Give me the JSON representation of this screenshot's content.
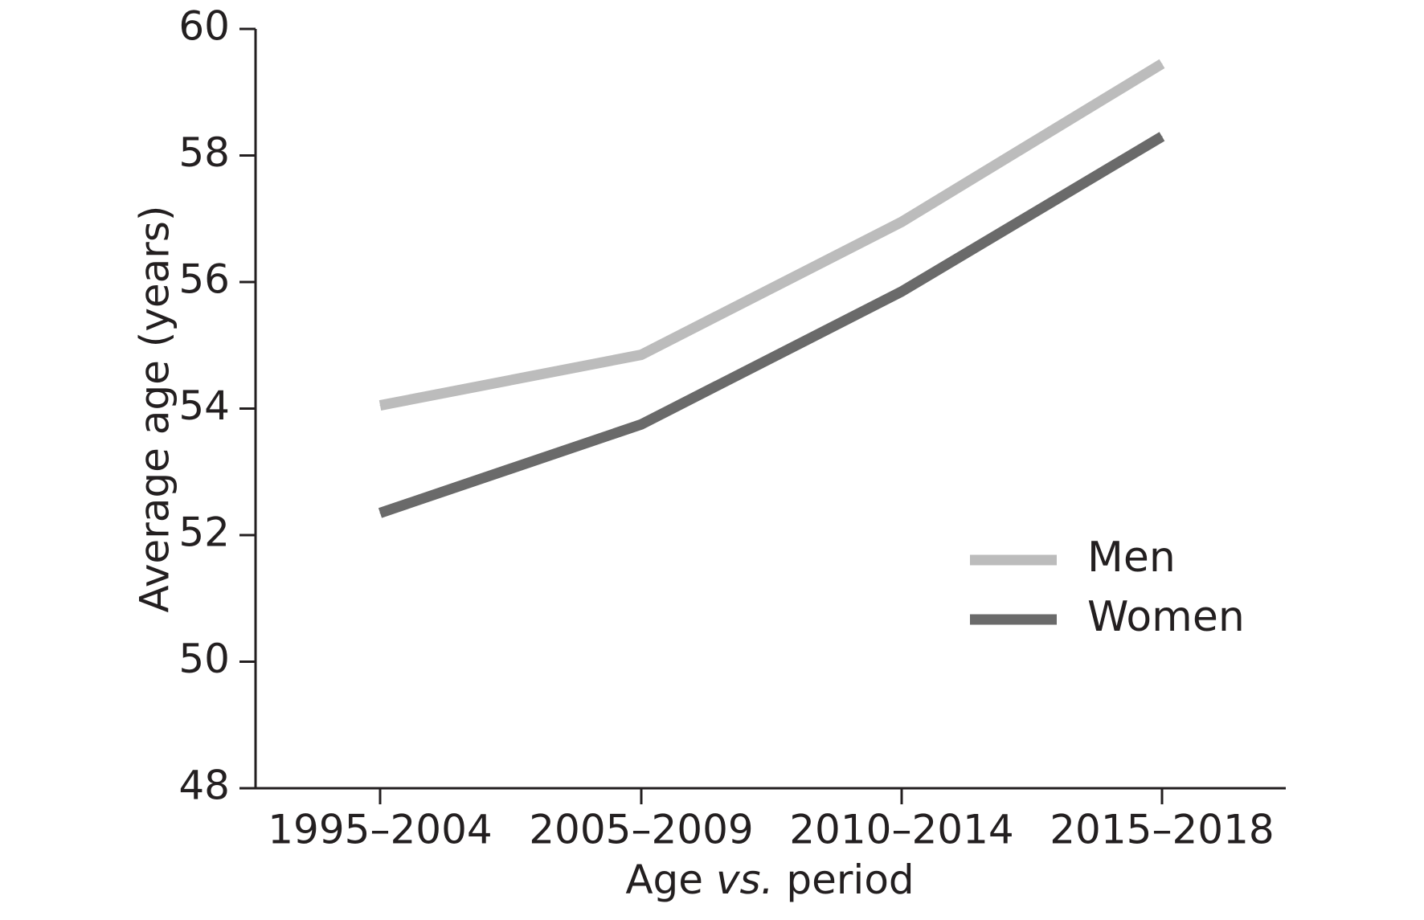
{
  "chart_data": {
    "type": "line",
    "categories": [
      "1995–2004",
      "2005–2009",
      "2010–2014",
      "2015–2018"
    ],
    "series": [
      {
        "name": "Men",
        "values": [
          54.05,
          54.85,
          56.95,
          59.45
        ],
        "color": "#bcbcbc"
      },
      {
        "name": "Women",
        "values": [
          52.35,
          53.75,
          55.85,
          58.3
        ],
        "color": "#6a6a6a"
      }
    ],
    "xlabel": "Age vs. period",
    "xlabel_parts": [
      "Age ",
      "vs.",
      " period"
    ],
    "ylabel": "Average age (years)",
    "ylim": [
      48,
      60
    ],
    "yticks": [
      48,
      50,
      52,
      54,
      56,
      58,
      60
    ],
    "grid": false,
    "legend_position": "right"
  }
}
